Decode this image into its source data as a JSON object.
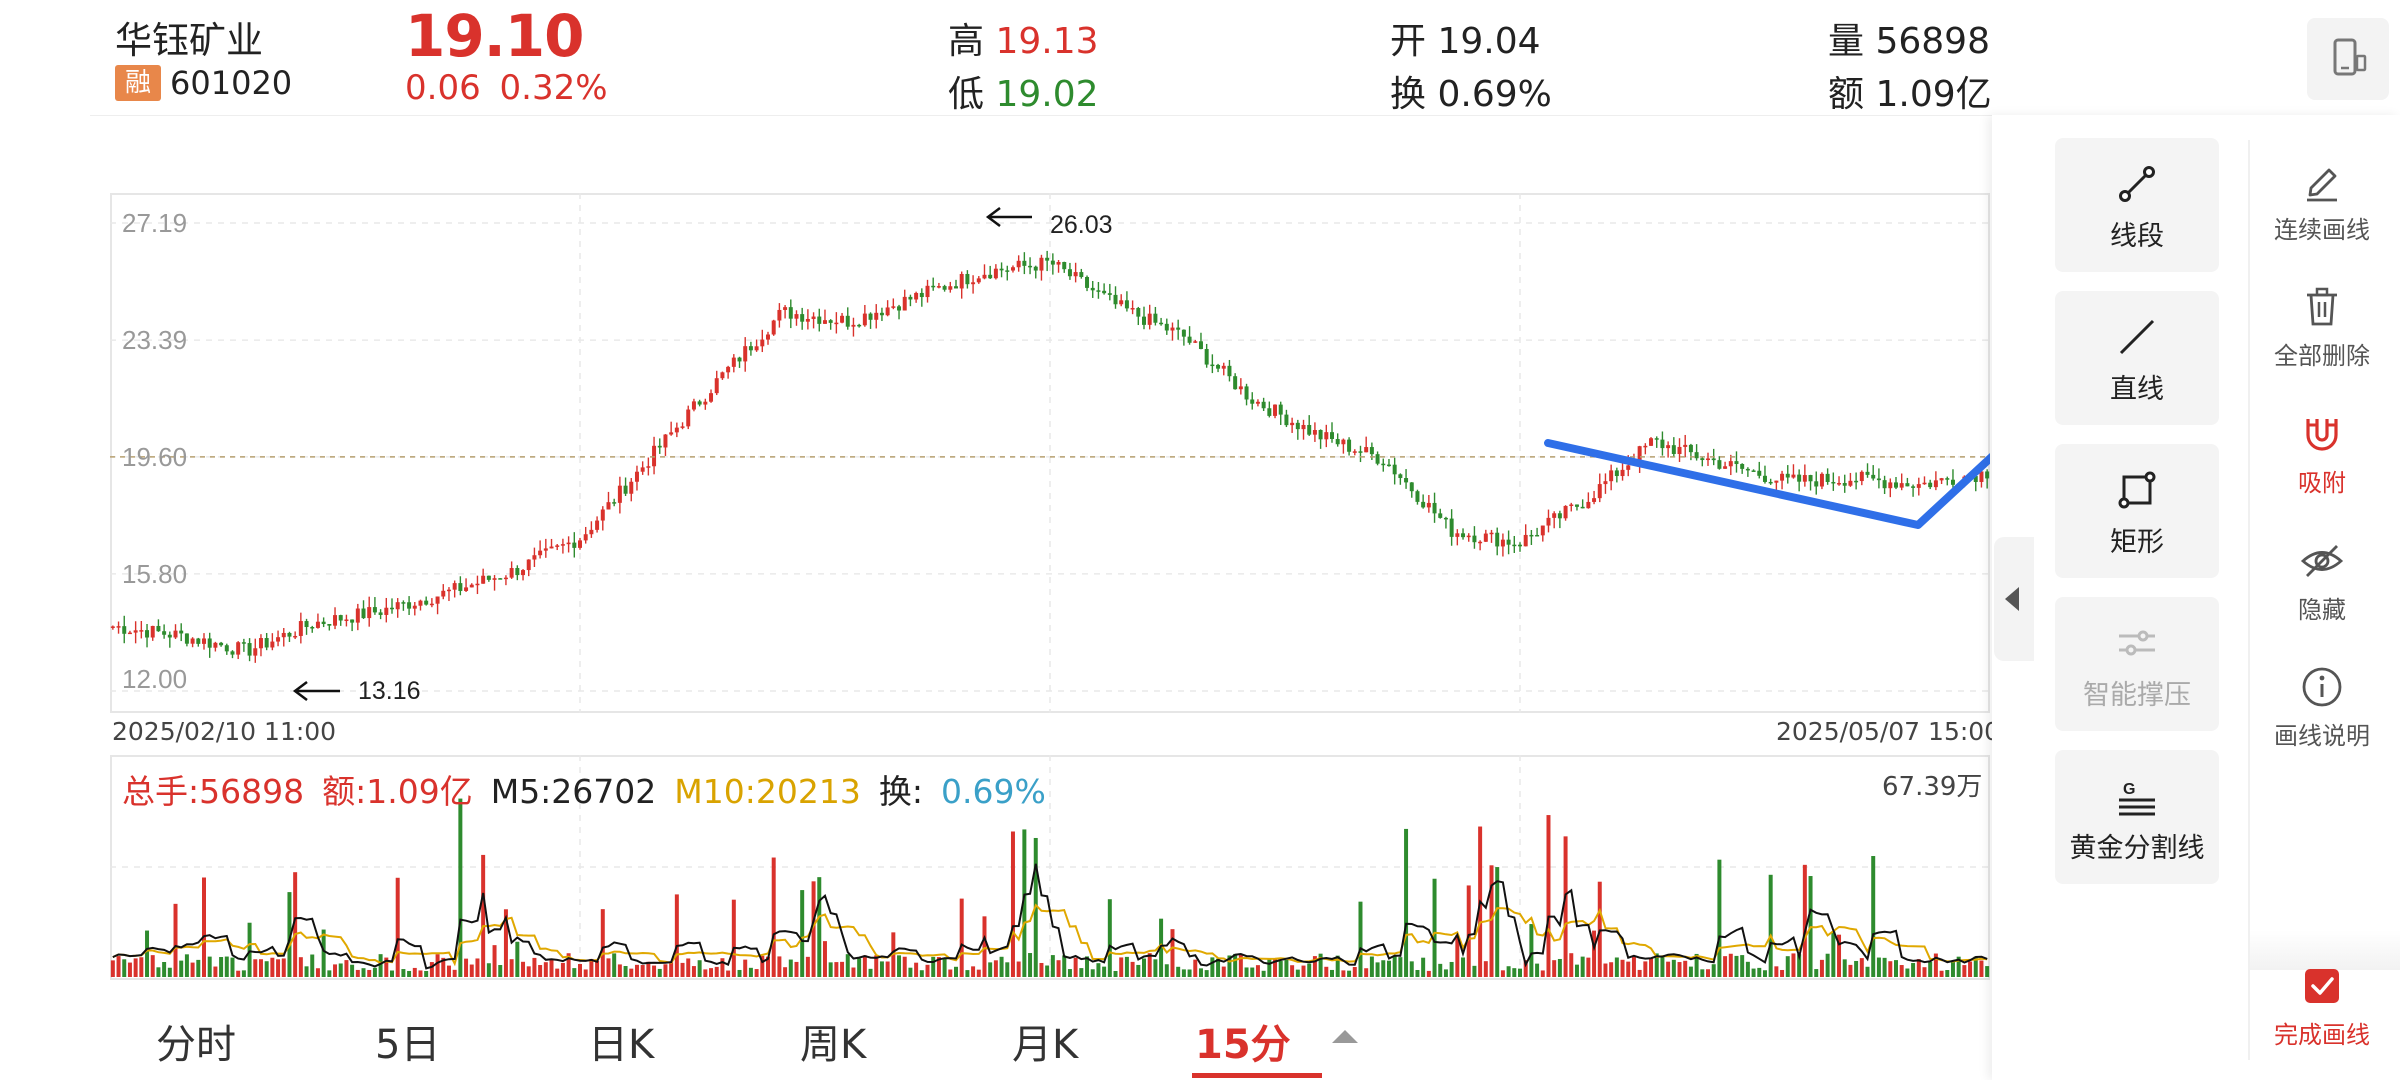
{
  "stock": {
    "name": "华钰矿业",
    "margin_tag": "融",
    "code": "601020",
    "price": "19.10",
    "change": "0.06",
    "change_pct": "0.32%",
    "high_label": "高",
    "high": "19.13",
    "low_label": "低",
    "low": "19.02",
    "open_label": "开",
    "open": "19.04",
    "turnover_label": "换",
    "turnover": "0.69%",
    "volume_label": "量",
    "volume": "56898",
    "amount_label": "额",
    "amount": "1.09亿"
  },
  "chart": {
    "y_ticks": [
      "27.19",
      "23.39",
      "19.60",
      "15.80",
      "12.00"
    ],
    "annot_high": "26.03",
    "annot_low": "13.16",
    "start_date": "2025/02/10 11:00",
    "end_date": "2025/05/07 15:00"
  },
  "volume": {
    "total_label": "总手:56898",
    "amount_label": "额:1.09亿",
    "m5_label": "M5:26702",
    "m10_label": "M10:20213",
    "turn_label": "换:",
    "turn_value": "0.69%",
    "max_label": "67.39万"
  },
  "tabs": [
    "分时",
    "5日",
    "日K",
    "周K",
    "月K",
    "15分"
  ],
  "active_tab": "15分",
  "tools": {
    "segment": "线段",
    "line": "直线",
    "rect": "矩形",
    "smart": "智能撑压",
    "golden": "黄金分割线"
  },
  "side": {
    "continuous": "连续画线",
    "delete_all": "全部删除",
    "snap": "吸附",
    "hide": "隐藏",
    "help": "画线说明",
    "done": "完成画线"
  },
  "colors": {
    "up": "#d9322c",
    "down": "#2e8b2e",
    "drawing_line": "#2f6fe8",
    "m5": "#111111",
    "m10": "#e0a800"
  },
  "chart_data": {
    "type": "candlestick",
    "timeframe": "15分",
    "x_range": [
      "2025/02/10 11:00",
      "2025/05/07 15:00"
    ],
    "ylim": [
      12.0,
      27.19
    ],
    "y_ticks": [
      27.19,
      23.39,
      19.6,
      15.8,
      12.0
    ],
    "reference_price": 19.6,
    "annotations": [
      {
        "text": "26.03",
        "value": 26.03,
        "kind": "high"
      },
      {
        "text": "13.16",
        "value": 13.16,
        "kind": "low"
      }
    ],
    "approx_close_path": [
      14.1,
      13.8,
      13.3,
      14.2,
      14.6,
      15.2,
      15.9,
      17.0,
      19.5,
      22.0,
      24.3,
      24.0,
      24.8,
      25.6,
      25.9,
      24.5,
      23.5,
      21.5,
      20.3,
      19.5,
      17.2,
      16.8,
      18.2,
      20.1,
      19.4,
      18.8,
      18.9,
      18.7,
      19.1
    ],
    "volume": {
      "max": "67.39万",
      "ma5": 26702,
      "ma10": 20213
    },
    "grid": true
  }
}
